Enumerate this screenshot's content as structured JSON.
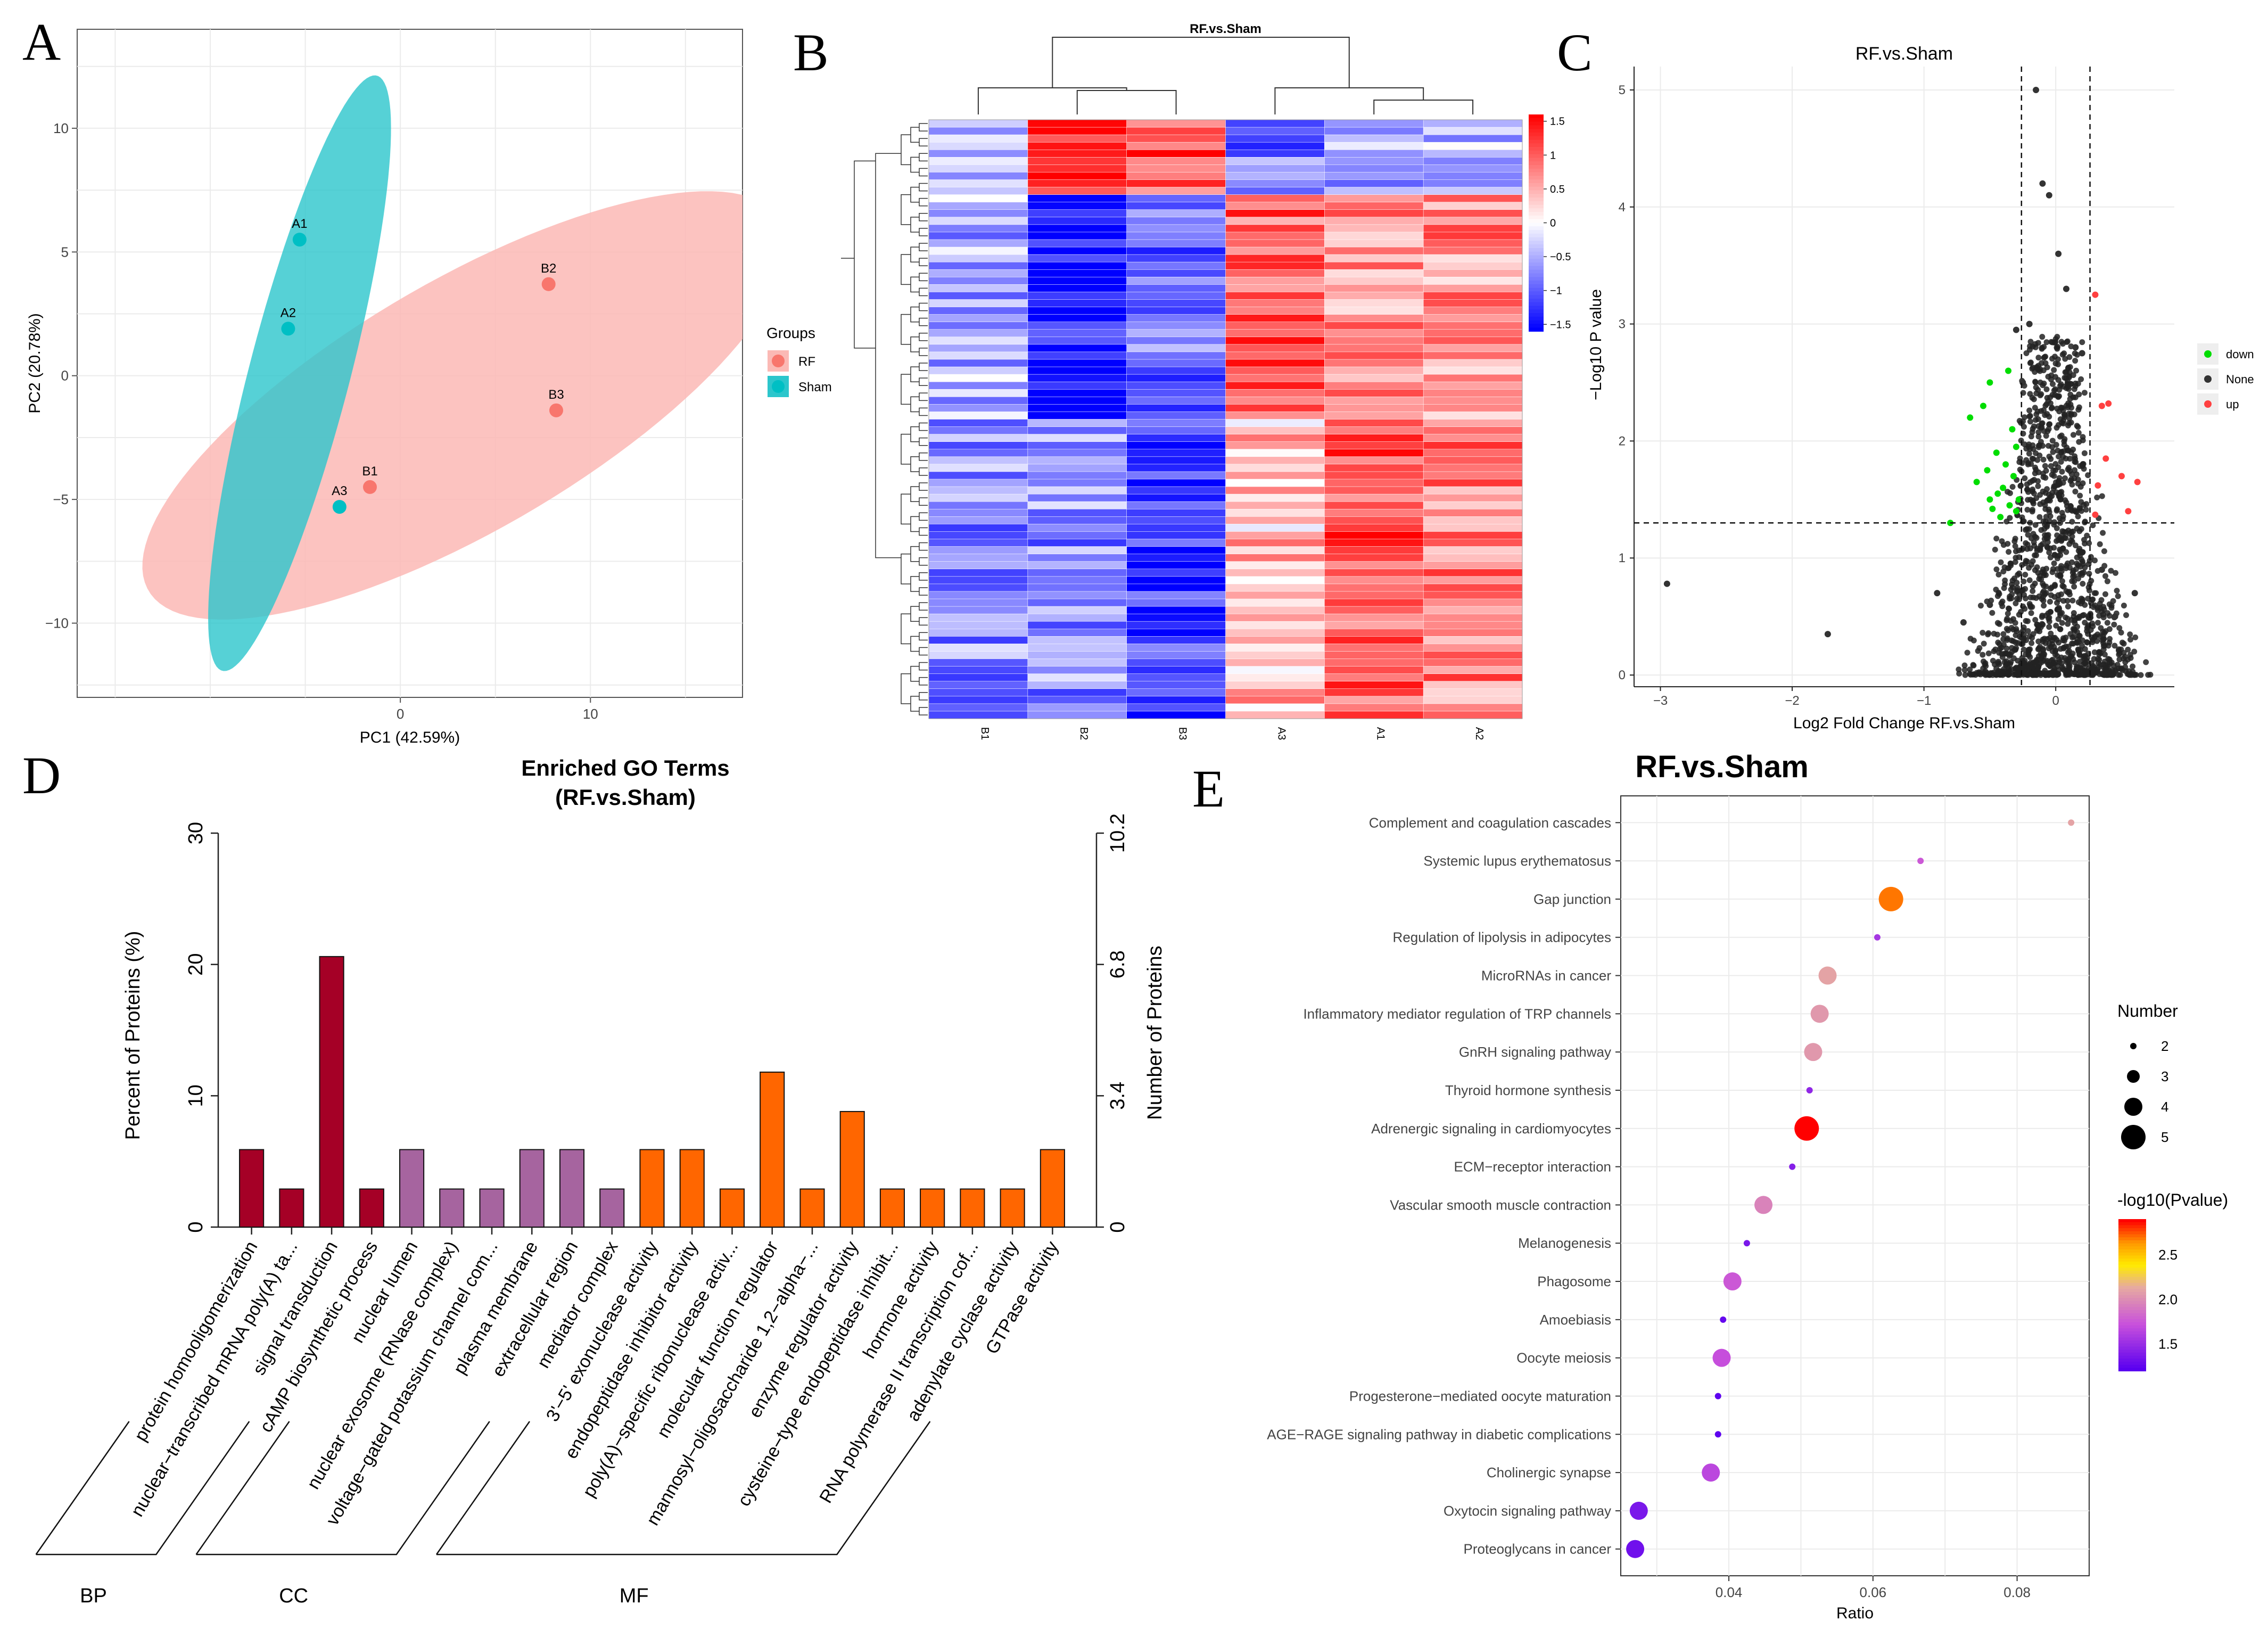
{
  "panel_letters": {
    "a": "A",
    "b": "B",
    "c": "C",
    "d": "D",
    "e": "E"
  },
  "colors": {
    "rf": "#F8766D",
    "sham": "#00BFC4",
    "ellipse_rf": "#FBB9B5",
    "ellipse_sham": "#2CC6CC",
    "bp": "#A50026",
    "cc": "#A6649F",
    "mf": "#FF6600",
    "down": "#00DD00",
    "none": "#333333",
    "up": "#FF4040",
    "grid": "#EBEBEB"
  },
  "chart_data": [
    {
      "id": "A",
      "type": "scatter",
      "title": "",
      "xlabel": "PC1 (42.59%)",
      "ylabel": "PC2 (20.78%)",
      "xlim": [
        -17,
        18
      ],
      "ylim": [
        -13,
        14
      ],
      "xticks": [
        0,
        10
      ],
      "yticks": [
        10,
        5,
        0,
        -5,
        -10
      ],
      "xtick_labels": [
        "0",
        "10"
      ],
      "ytick_labels": [
        "10",
        "5",
        "0",
        "−5",
        "−10"
      ],
      "legend_title": "Groups",
      "series": [
        {
          "name": "RF",
          "points": [
            {
              "label": "B1",
              "x": -1.6,
              "y": -4.5
            },
            {
              "label": "B2",
              "x": 7.8,
              "y": 3.7
            },
            {
              "label": "B3",
              "x": 8.2,
              "y": -1.4
            }
          ]
        },
        {
          "name": "Sham",
          "points": [
            {
              "label": "A1",
              "x": -5.3,
              "y": 5.5
            },
            {
              "label": "A2",
              "x": -5.9,
              "y": 1.9
            },
            {
              "label": "A3",
              "x": -3.2,
              "y": -5.3
            }
          ]
        }
      ],
      "ellipses": [
        {
          "group": "RF",
          "cx": 3.4,
          "cy": -1.2,
          "semi_major": 18.3,
          "semi_minor": 5.3,
          "angle": 23
        },
        {
          "group": "Sham",
          "cx": -5.3,
          "cy": 0.1,
          "semi_major": 12.7,
          "semi_minor": 2.6,
          "angle": 71
        }
      ]
    },
    {
      "id": "B",
      "type": "heatmap",
      "title": "RF.vs.Sham",
      "columns": [
        "B1",
        "B2",
        "B3",
        "A3",
        "A1",
        "A2"
      ],
      "colorbar_ticks": [
        "1.5",
        "1",
        "0.5",
        "0",
        "−0.5",
        "−1",
        "−1.5"
      ],
      "colorbar_values": [
        1.5,
        1,
        0.5,
        0,
        -0.5,
        -1,
        -1.5
      ],
      "n_rows": 80,
      "row_groups": [
        {
          "rows": 10,
          "B1": -0.3,
          "B2": 1.5,
          "B3": 1.1,
          "A3": -0.9,
          "A1": -0.6,
          "A2": -0.5
        },
        {
          "rows": 30,
          "B1": -0.5,
          "B2": -1.5,
          "B3": -0.9,
          "A3": 1.0,
          "A1": 0.7,
          "A2": 0.7
        },
        {
          "rows": 40,
          "B1": -0.7,
          "B2": -0.7,
          "B3": -1.2,
          "A3": 0.4,
          "A1": 1.1,
          "A2": 0.8
        }
      ]
    },
    {
      "id": "C",
      "type": "scatter",
      "title": "RF.vs.Sham",
      "xlabel": "Log2 Fold Change RF.vs.Sham",
      "ylabel": "−Log10 P value",
      "xlim": [
        -3.2,
        0.9
      ],
      "ylim": [
        -0.1,
        5.2
      ],
      "xticks": [
        -3,
        -2,
        -1,
        0
      ],
      "yticks": [
        0,
        1,
        2,
        3,
        4,
        5
      ],
      "xtick_labels": [
        "−3",
        "−2",
        "−1",
        "0"
      ],
      "ytick_labels": [
        "0",
        "1",
        "2",
        "3",
        "4",
        "5"
      ],
      "vlines": [
        -0.26,
        0.26
      ],
      "hline": 1.3,
      "legend": [
        {
          "name": "down"
        },
        {
          "name": "None"
        },
        {
          "name": "up"
        }
      ],
      "series": [
        {
          "name": "down",
          "points": [
            [
              -0.45,
              1.9
            ],
            [
              -0.52,
              1.75
            ],
            [
              -0.4,
              1.6
            ],
            [
              -0.33,
              2.1
            ],
            [
              -0.3,
              1.95
            ],
            [
              -0.35,
              1.45
            ],
            [
              -0.6,
              1.65
            ],
            [
              -0.42,
              1.35
            ],
            [
              -0.8,
              1.3
            ],
            [
              -0.28,
              1.5
            ],
            [
              -0.5,
              1.5
            ],
            [
              -0.38,
              1.8
            ],
            [
              -0.3,
              1.4
            ],
            [
              -0.48,
              1.42
            ],
            [
              -0.55,
              2.3
            ],
            [
              -0.36,
              2.6
            ],
            [
              -0.5,
              2.5
            ],
            [
              -0.65,
              2.2
            ],
            [
              -0.32,
              1.7
            ],
            [
              -0.44,
              1.55
            ]
          ]
        },
        {
          "name": "None",
          "points": [
            [
              -0.15,
              5.0
            ],
            [
              -0.1,
              4.2
            ],
            [
              -0.05,
              4.1
            ],
            [
              0.02,
              3.6
            ],
            [
              -0.2,
              3.0
            ],
            [
              0.08,
              3.3
            ],
            [
              -0.3,
              2.95
            ],
            [
              0.2,
              2.75
            ],
            [
              -0.25,
              2.5
            ],
            [
              0.15,
              2.8
            ],
            [
              -2.95,
              0.78
            ],
            [
              -1.73,
              0.35
            ],
            [
              -0.9,
              0.7
            ],
            [
              0.6,
              0.7
            ],
            [
              0.45,
              0.5
            ],
            [
              -0.7,
              0.45
            ],
            [
              0.35,
              0.9
            ],
            [
              -0.5,
              0.6
            ]
          ]
        },
        {
          "name": "up",
          "points": [
            [
              0.3,
              3.25
            ],
            [
              0.35,
              2.3
            ],
            [
              0.38,
              1.85
            ],
            [
              0.5,
              1.7
            ],
            [
              0.62,
              1.65
            ],
            [
              0.32,
              1.62
            ],
            [
              0.55,
              1.4
            ],
            [
              0.3,
              1.37
            ],
            [
              0.4,
              2.32
            ]
          ]
        }
      ]
    },
    {
      "id": "D",
      "type": "bar",
      "title": "Enriched GO Terms",
      "subtitle": "(RF.vs.Sham)",
      "ylabel": "Percent of Proteins (%)",
      "y2label": "Number of Proteins",
      "ylim": [
        0,
        30
      ],
      "yticks": [
        0,
        10,
        20,
        30
      ],
      "ytick_labels": [
        "0",
        "10",
        "20",
        "30"
      ],
      "y2_ticks": [
        "0",
        "3.4",
        "6.8",
        "10.2"
      ],
      "categories": [
        "protein homooligomerization",
        "nuclear−transcribed mRNA poly(A) ta...",
        "signal transduction",
        "cAMP biosynthetic process",
        "nuclear lumen",
        "nuclear exosome (RNase complex)",
        "voltage−gated potassium channel com...",
        "plasma membrane",
        "extracellular region",
        "mediator complex",
        "3'−5' exonuclease activity",
        "endopeptidase inhibitor activity",
        "poly(A)−specific ribonuclease activ...",
        "molecular function regulator",
        "mannosyl−oligosaccharide 1,2−alpha−...",
        "enzyme regulator activity",
        "cysteine−type endopeptidase inhibit...",
        "hormone activity",
        "RNA polymerase II transcription cof...",
        "adenylate cyclase activity",
        "GTPase activity"
      ],
      "values": [
        5.9,
        2.9,
        20.6,
        2.9,
        5.9,
        2.9,
        2.9,
        5.9,
        5.9,
        2.9,
        5.9,
        5.9,
        2.9,
        11.8,
        2.9,
        8.8,
        2.9,
        2.9,
        2.9,
        2.9,
        5.9
      ],
      "groups": [
        "BP",
        "BP",
        "BP",
        "BP",
        "CC",
        "CC",
        "CC",
        "CC",
        "CC",
        "CC",
        "MF",
        "MF",
        "MF",
        "MF",
        "MF",
        "MF",
        "MF",
        "MF",
        "MF",
        "MF",
        "MF"
      ],
      "group_labels": {
        "bp": "BP",
        "cc": "CC",
        "mf": "MF"
      }
    },
    {
      "id": "E",
      "type": "scatter",
      "title": "RF.vs.Sham",
      "xlabel": "Ratio",
      "xlim": [
        0.025,
        0.09
      ],
      "xticks": [
        0.04,
        0.06,
        0.08
      ],
      "xtick_labels": [
        "0.04",
        "0.06",
        "0.08"
      ],
      "size_legend_title": "Number",
      "size_legend": [
        "2",
        "3",
        "4",
        "5"
      ],
      "color_legend_title": "-log10(Pvalue)",
      "color_legend": [
        "2.5",
        "2.0",
        "1.5"
      ],
      "pvalue_range": [
        1.2,
        2.9
      ],
      "terms": [
        {
          "name": "Complement and coagulation cascades",
          "ratio": 0.0875,
          "number": 2,
          "logp": 2.1
        },
        {
          "name": "Systemic lupus erythematosus",
          "ratio": 0.0666,
          "number": 2,
          "logp": 1.75
        },
        {
          "name": "Gap junction",
          "ratio": 0.0625,
          "number": 5,
          "logp": 2.7
        },
        {
          "name": "Regulation of lipolysis in adipocytes",
          "ratio": 0.0606,
          "number": 2,
          "logp": 1.55
        },
        {
          "name": "MicroRNAs in cancer",
          "ratio": 0.0537,
          "number": 4,
          "logp": 2.1
        },
        {
          "name": "Inflammatory mediator regulation of TRP channels",
          "ratio": 0.0526,
          "number": 4,
          "logp": 2.05
        },
        {
          "name": "GnRH signaling pathway",
          "ratio": 0.0517,
          "number": 4,
          "logp": 2.05
        },
        {
          "name": "Thyroid hormone synthesis",
          "ratio": 0.0512,
          "number": 2,
          "logp": 1.45
        },
        {
          "name": "Adrenergic signaling in cardiomyocytes",
          "ratio": 0.0508,
          "number": 5,
          "logp": 2.9
        },
        {
          "name": "ECM−receptor interaction",
          "ratio": 0.0488,
          "number": 2,
          "logp": 1.4
        },
        {
          "name": "Vascular smooth muscle contraction",
          "ratio": 0.0448,
          "number": 4,
          "logp": 1.95
        },
        {
          "name": "Melanogenesis",
          "ratio": 0.0425,
          "number": 2,
          "logp": 1.35
        },
        {
          "name": "Phagosome",
          "ratio": 0.0405,
          "number": 4,
          "logp": 1.75
        },
        {
          "name": "Amoebiasis",
          "ratio": 0.0392,
          "number": 2,
          "logp": 1.25
        },
        {
          "name": "Oocyte meiosis",
          "ratio": 0.039,
          "number": 4,
          "logp": 1.7
        },
        {
          "name": "Progesterone−mediated oocyte maturation",
          "ratio": 0.0385,
          "number": 2,
          "logp": 1.22
        },
        {
          "name": "AGE−RAGE signaling pathway in diabetic complications",
          "ratio": 0.0385,
          "number": 2,
          "logp": 1.22
        },
        {
          "name": "Cholinergic synapse",
          "ratio": 0.0375,
          "number": 4,
          "logp": 1.65
        },
        {
          "name": "Oxytocin signaling pathway",
          "ratio": 0.0275,
          "number": 4,
          "logp": 1.35
        },
        {
          "name": "Proteoglycans in cancer",
          "ratio": 0.027,
          "number": 4,
          "logp": 1.3
        }
      ]
    }
  ]
}
